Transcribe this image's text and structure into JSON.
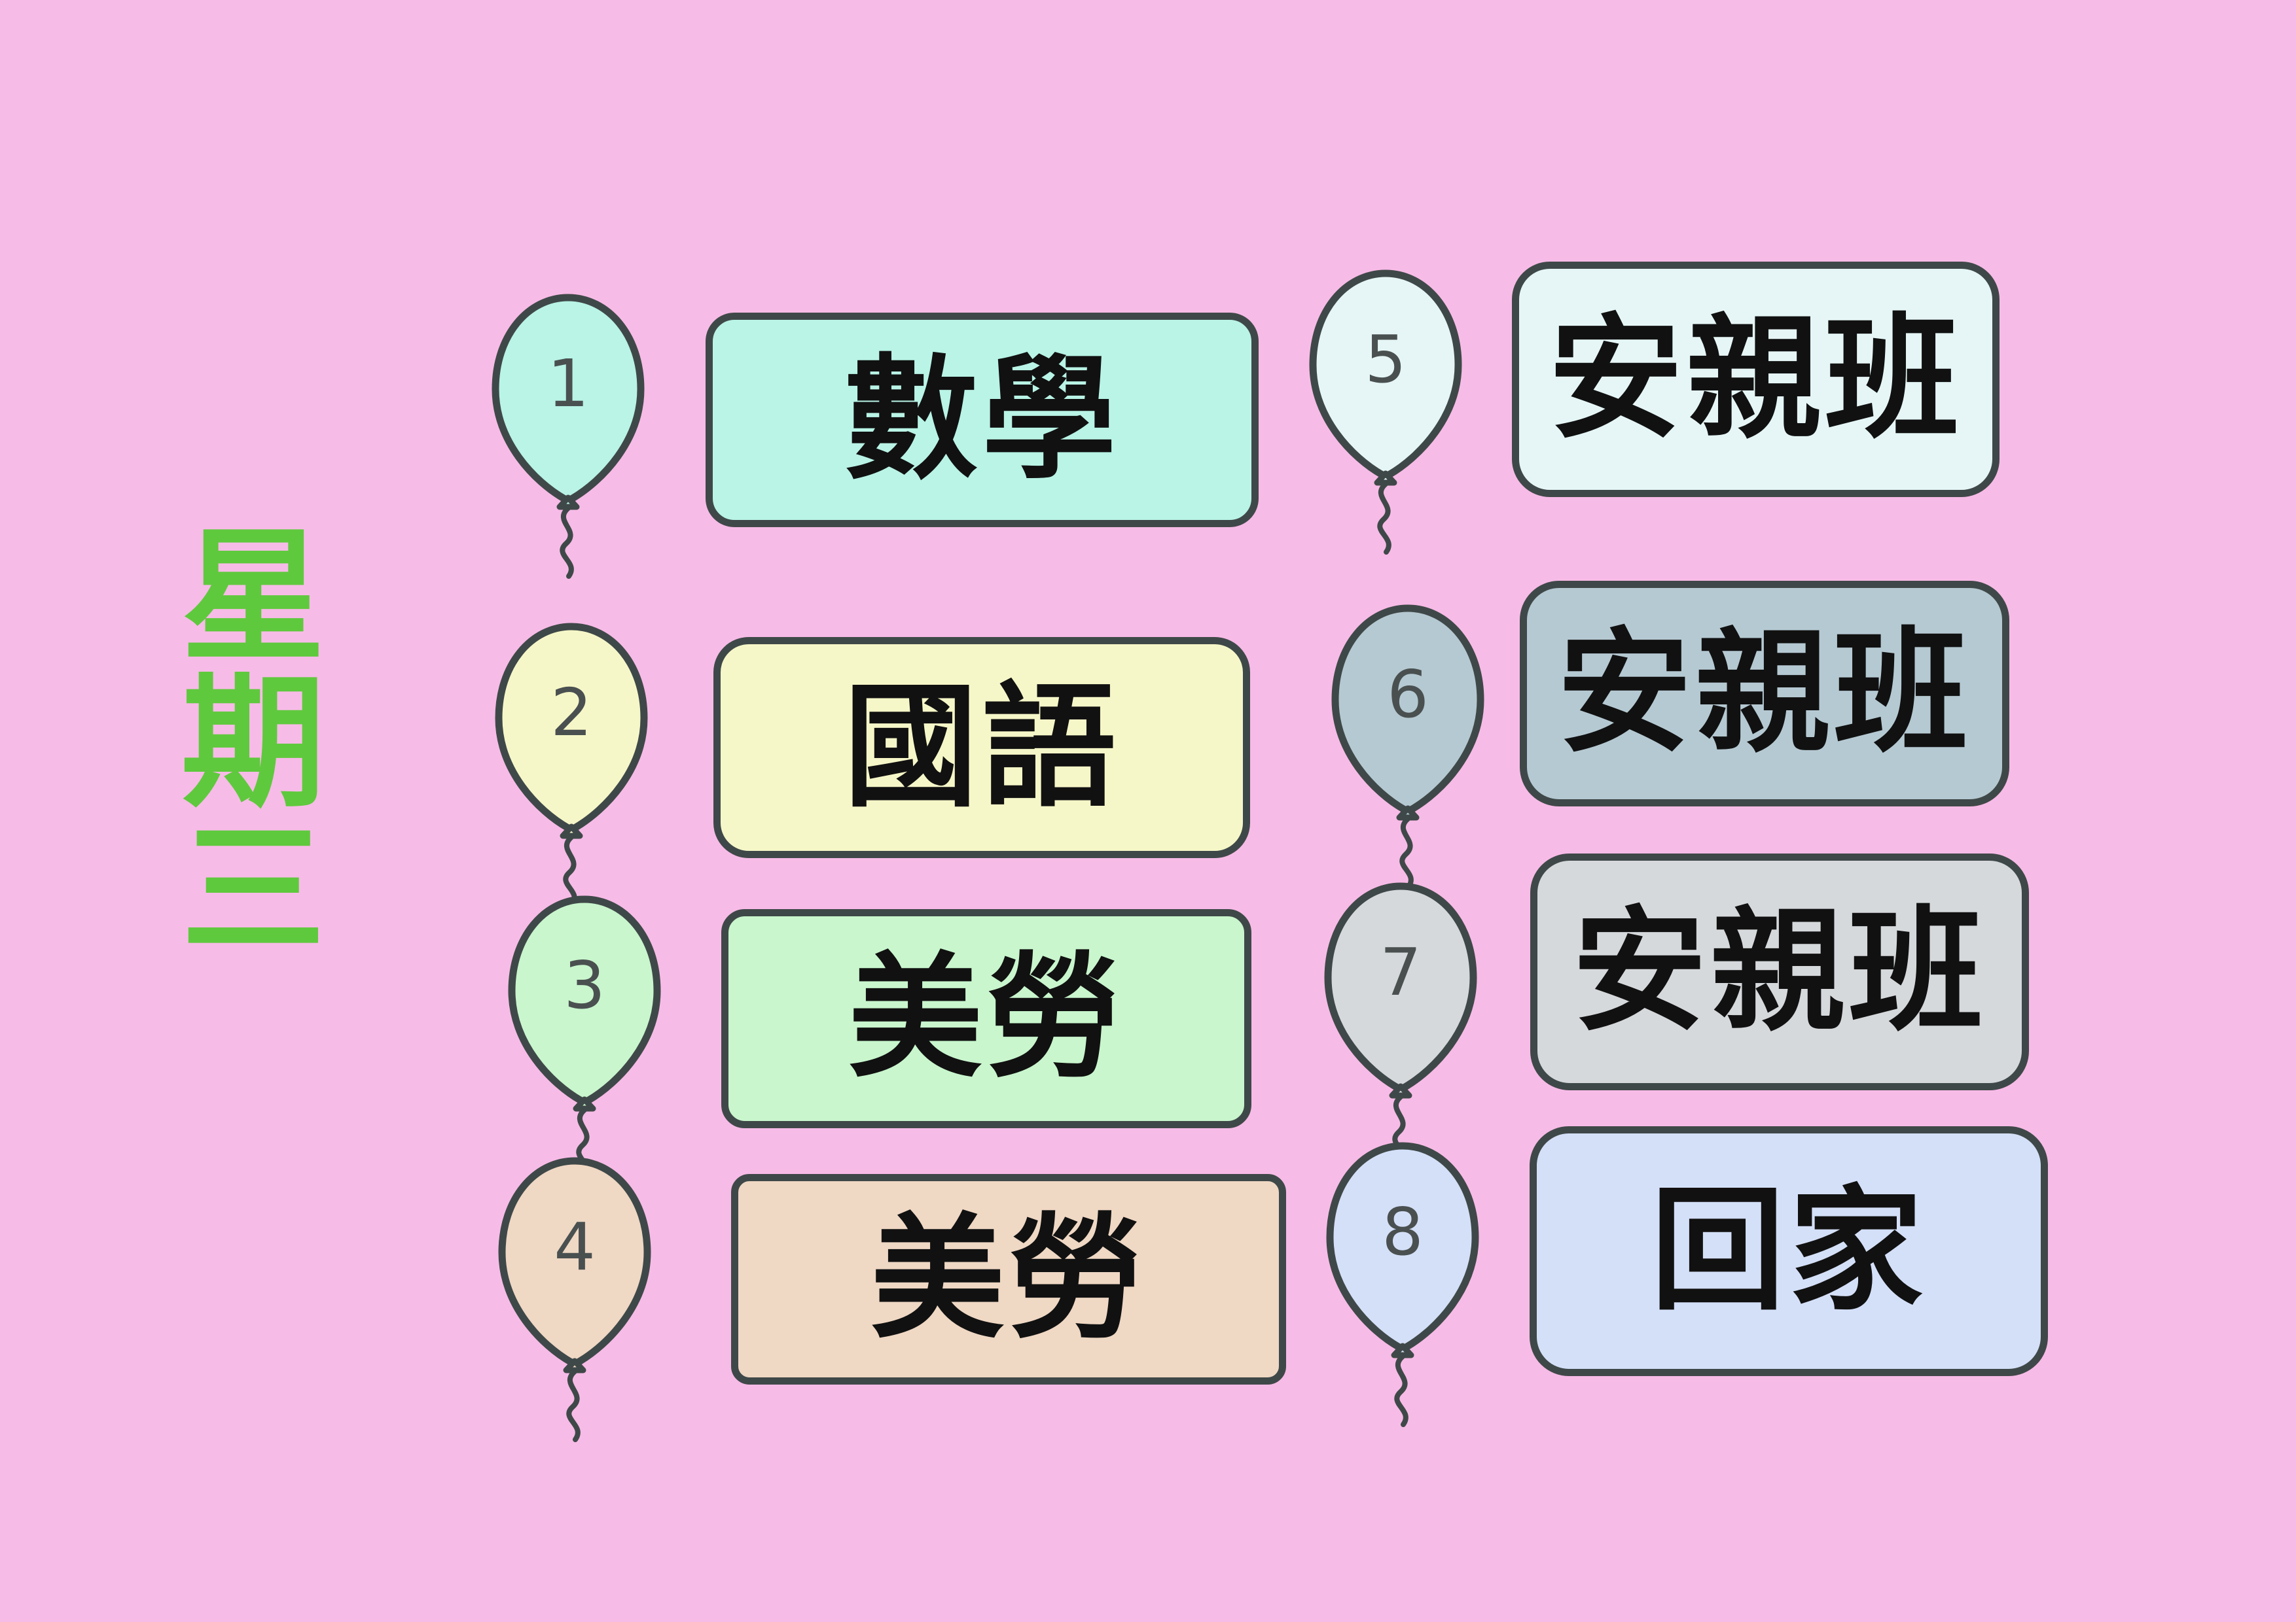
{
  "day_title": "星期三",
  "periods": [
    {
      "number": "1",
      "subject": "數學",
      "color": "#b9f4e6"
    },
    {
      "number": "2",
      "subject": "國語",
      "color": "#f6f7c8"
    },
    {
      "number": "3",
      "subject": "美勞",
      "color": "#c9f6cd"
    },
    {
      "number": "4",
      "subject": "美勞",
      "color": "#efd8c4"
    },
    {
      "number": "5",
      "subject": "安親班",
      "color": "#e6f6f6"
    },
    {
      "number": "6",
      "subject": "安親班",
      "color": "#b5c9d2"
    },
    {
      "number": "7",
      "subject": "安親班",
      "color": "#d6d9dc"
    },
    {
      "number": "8",
      "subject": "回家",
      "color": "#d4e0f8"
    }
  ],
  "colors": {
    "background": "#f7bbe7",
    "title": "#5fc93d",
    "outline": "#3f4848"
  }
}
